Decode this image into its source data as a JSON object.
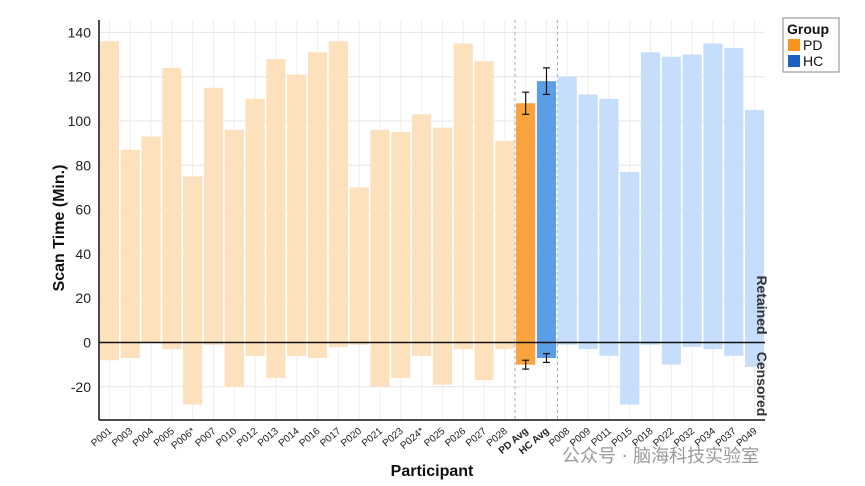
{
  "chart_data": {
    "type": "bar",
    "title": "",
    "xlabel": "Participant",
    "ylabel": "Scan Time (Min.)",
    "ylim": [
      -35,
      145
    ],
    "yticks": [
      -20,
      0,
      20,
      40,
      60,
      80,
      100,
      120,
      140
    ],
    "grid": true,
    "side_labels": {
      "top": "Retained",
      "bottom": "Censored"
    },
    "legend": {
      "title": "Group",
      "placement": "outside-top-right",
      "items": [
        {
          "label": "PD",
          "color": "#f7941d"
        },
        {
          "label": "HC",
          "color": "#1f5fbf"
        }
      ]
    },
    "colors": {
      "pd_light": "#fde0bc",
      "hc_light": "#c6defc",
      "pd_avg": "#f9a33f",
      "hc_avg": "#5a9ee6",
      "pd_label": "#f7941d",
      "hc_label": "#1f6fd1"
    },
    "bars": [
      {
        "label": "P001",
        "group": "PD",
        "retained": 136,
        "censored": -8
      },
      {
        "label": "P003",
        "group": "PD",
        "retained": 87,
        "censored": -7
      },
      {
        "label": "P004",
        "group": "PD",
        "retained": 93,
        "censored": 0
      },
      {
        "label": "P005",
        "group": "PD",
        "retained": 124,
        "censored": -3
      },
      {
        "label": "P006*",
        "group": "PD",
        "retained": 75,
        "censored": -28
      },
      {
        "label": "P007",
        "group": "PD",
        "retained": 115,
        "censored": -1
      },
      {
        "label": "P010",
        "group": "PD",
        "retained": 96,
        "censored": -20
      },
      {
        "label": "P012",
        "group": "PD",
        "retained": 110,
        "censored": -6
      },
      {
        "label": "P013",
        "group": "PD",
        "retained": 128,
        "censored": -16
      },
      {
        "label": "P014",
        "group": "PD",
        "retained": 121,
        "censored": -6
      },
      {
        "label": "P016",
        "group": "PD",
        "retained": 131,
        "censored": -7
      },
      {
        "label": "P017",
        "group": "PD",
        "retained": 136,
        "censored": -2
      },
      {
        "label": "P020",
        "group": "PD",
        "retained": 70,
        "censored": -1
      },
      {
        "label": "P021",
        "group": "PD",
        "retained": 96,
        "censored": -20
      },
      {
        "label": "P023",
        "group": "PD",
        "retained": 95,
        "censored": -16
      },
      {
        "label": "P024*",
        "group": "PD",
        "retained": 103,
        "censored": -6
      },
      {
        "label": "P025",
        "group": "PD",
        "retained": 97,
        "censored": -19
      },
      {
        "label": "P026",
        "group": "PD",
        "retained": 135,
        "censored": -3
      },
      {
        "label": "P027",
        "group": "PD",
        "retained": 127,
        "censored": -17
      },
      {
        "label": "P028",
        "group": "PD",
        "retained": 91,
        "censored": -3
      },
      {
        "label": "PD Avg",
        "group": "PD",
        "avg": true,
        "retained": 108,
        "censored": -10,
        "err_top": 5,
        "err_bottom": 2
      },
      {
        "label": "HC Avg",
        "group": "HC",
        "avg": true,
        "retained": 118,
        "censored": -7,
        "err_top": 6,
        "err_bottom": 2
      },
      {
        "label": "P008",
        "group": "HC",
        "retained": 120,
        "censored": -1
      },
      {
        "label": "P009",
        "group": "HC",
        "retained": 112,
        "censored": -3
      },
      {
        "label": "P011",
        "group": "HC",
        "retained": 110,
        "censored": -6
      },
      {
        "label": "P015",
        "group": "HC",
        "retained": 77,
        "censored": -28
      },
      {
        "label": "P018",
        "group": "HC",
        "retained": 131,
        "censored": -1
      },
      {
        "label": "P022",
        "group": "HC",
        "retained": 129,
        "censored": -10
      },
      {
        "label": "P032",
        "group": "HC",
        "retained": 130,
        "censored": -2
      },
      {
        "label": "P034",
        "group": "HC",
        "retained": 135,
        "censored": -3
      },
      {
        "label": "P037",
        "group": "HC",
        "retained": 133,
        "censored": -6
      },
      {
        "label": "P049",
        "group": "HC",
        "retained": 105,
        "censored": -11
      }
    ]
  },
  "watermark": "公众号 · 脑海科技实验室"
}
